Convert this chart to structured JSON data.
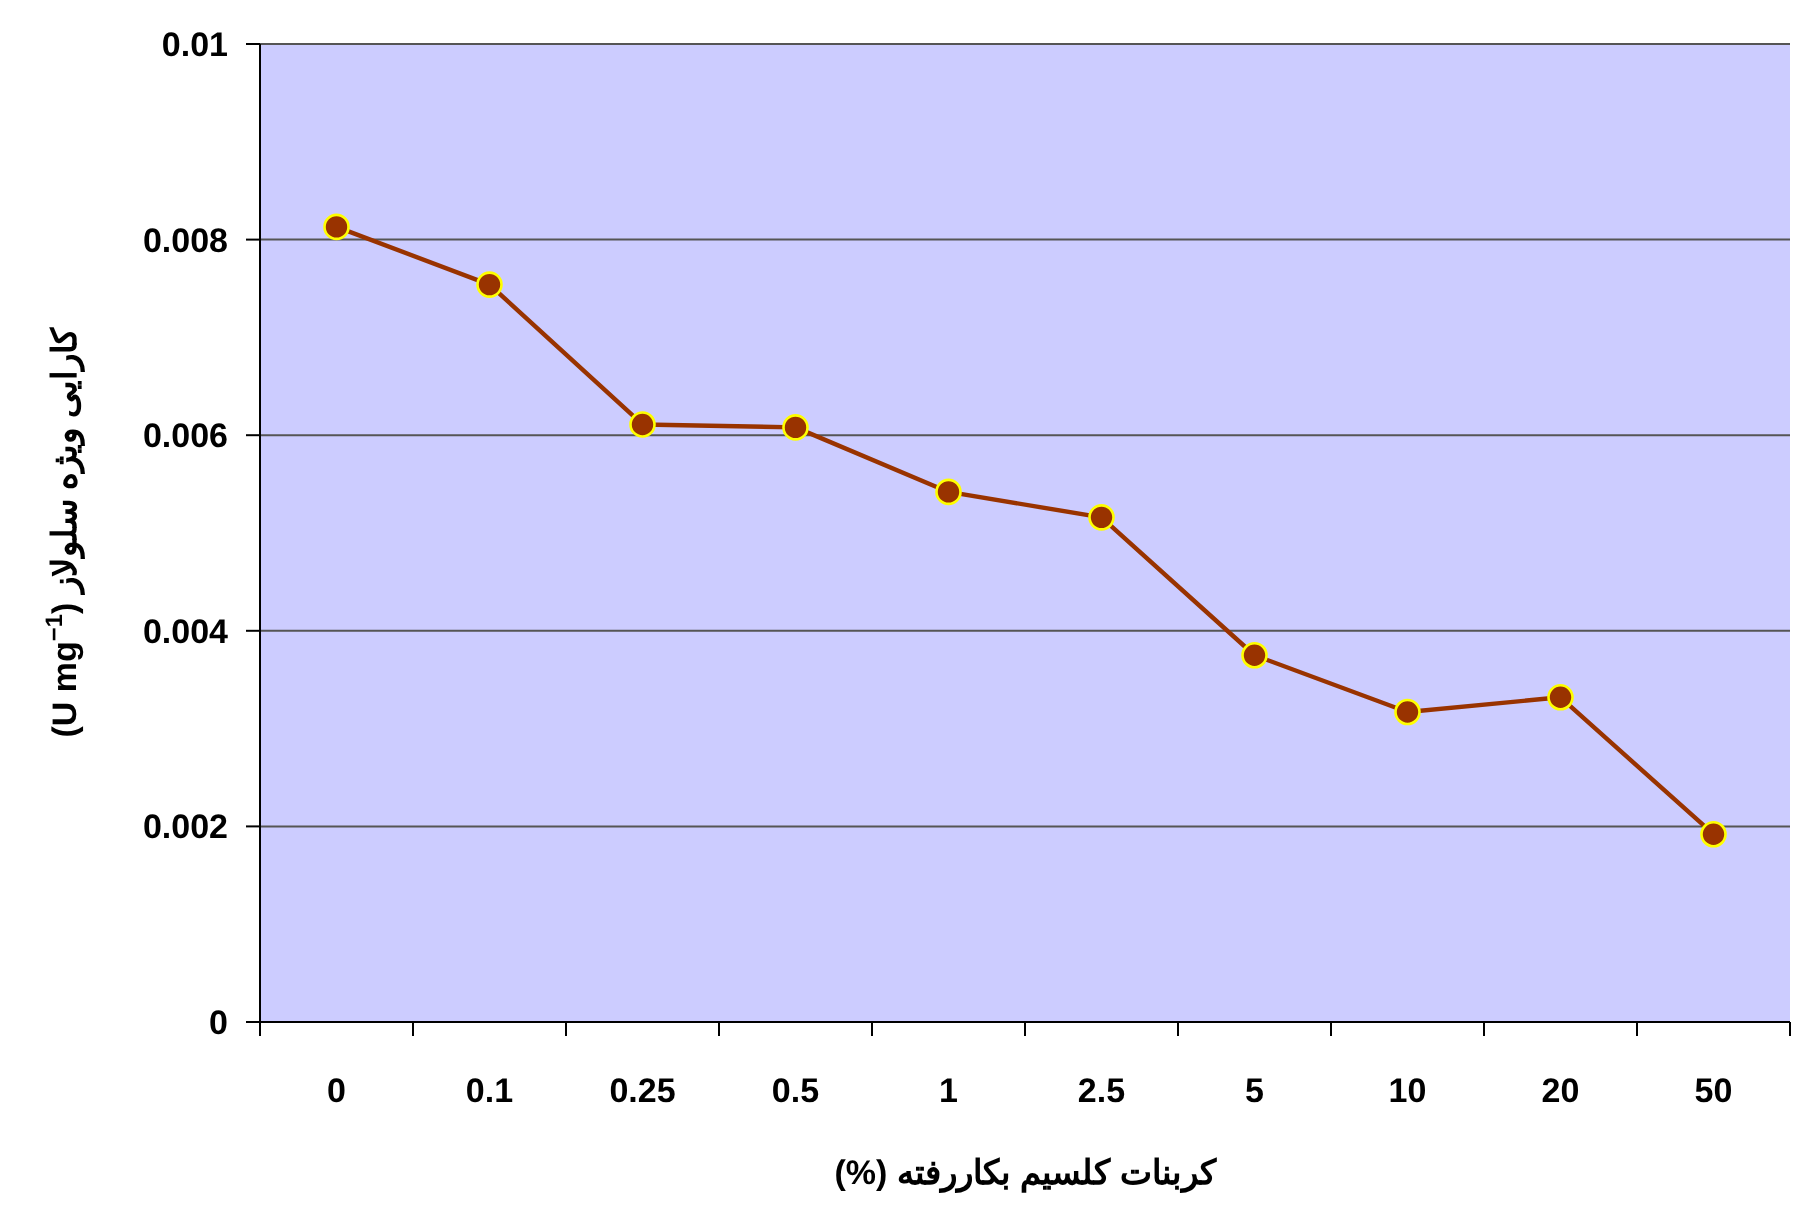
{
  "chart_data": {
    "type": "line",
    "xlabel": "کربنات کلسیم بکاررفته (%)",
    "ylabel": "کارایی ویژه سلولاز (U mg$^{−1}$)",
    "categories": [
      "0",
      "0.1",
      "0.25",
      "0.5",
      "1",
      "2.5",
      "5",
      "10",
      "20",
      "50"
    ],
    "series": [
      {
        "color": "#993300",
        "values": [
          0.00813,
          0.00754,
          0.00611,
          0.00608,
          0.00542,
          0.00516,
          0.00375,
          0.00317,
          0.00332,
          0.00192
        ]
      }
    ],
    "ylim": [
      0,
      0.01
    ],
    "yticks": [
      0,
      0.002,
      0.004,
      0.006,
      0.008,
      0.01
    ],
    "grid": "y",
    "marker": "circle",
    "line_style": "solid"
  }
}
